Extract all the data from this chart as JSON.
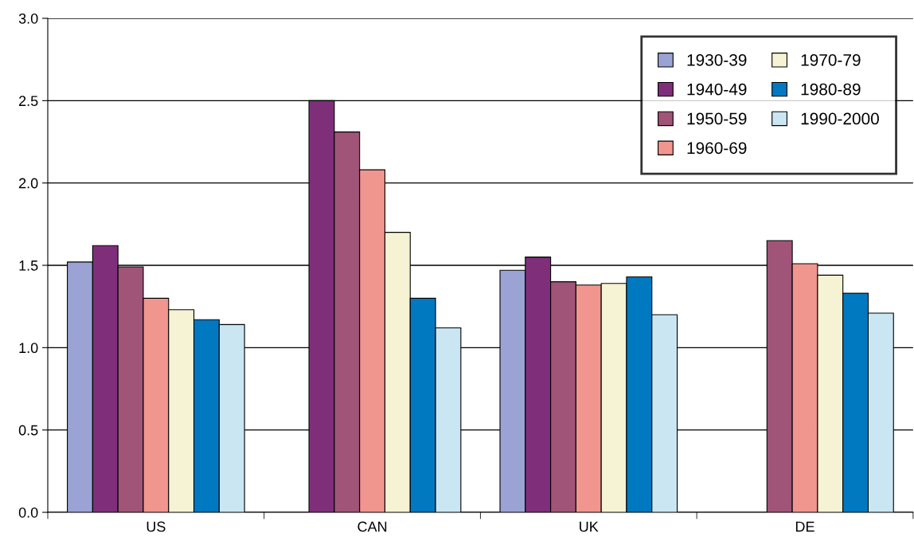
{
  "chart_data": {
    "type": "bar",
    "categories": [
      "US",
      "CAN",
      "UK",
      "DE"
    ],
    "series": [
      {
        "name": "1930-39",
        "color": "#9aa3d4",
        "values": [
          1.52,
          null,
          1.47,
          null
        ]
      },
      {
        "name": "1940-49",
        "color": "#7f2f7a",
        "values": [
          1.62,
          2.5,
          1.55,
          null
        ]
      },
      {
        "name": "1950-59",
        "color": "#a05478",
        "values": [
          1.49,
          2.31,
          1.4,
          1.65
        ]
      },
      {
        "name": "1960-69",
        "color": "#f0968f",
        "values": [
          1.3,
          2.08,
          1.38,
          1.51
        ]
      },
      {
        "name": "1970-79",
        "color": "#f5f3d4",
        "values": [
          1.23,
          1.7,
          1.39,
          1.44
        ]
      },
      {
        "name": "1980-89",
        "color": "#0079c1",
        "values": [
          1.17,
          1.3,
          1.43,
          1.33
        ]
      },
      {
        "name": "1990-2000",
        "color": "#c9e6f2",
        "values": [
          1.14,
          1.12,
          1.2,
          1.21
        ]
      }
    ],
    "ylim": [
      0,
      3
    ],
    "yticks": [
      {
        "value": 0,
        "label": "0.0"
      },
      {
        "value": 0.5,
        "label": "0.5"
      },
      {
        "value": 1,
        "label": "1.0"
      },
      {
        "value": 1.5,
        "label": "1.5"
      },
      {
        "value": 2,
        "label": "2.0"
      },
      {
        "value": 2.5,
        "label": "2.5"
      },
      {
        "value": 3,
        "label": "3.0"
      }
    ],
    "grid": "y",
    "legend": "top right"
  }
}
